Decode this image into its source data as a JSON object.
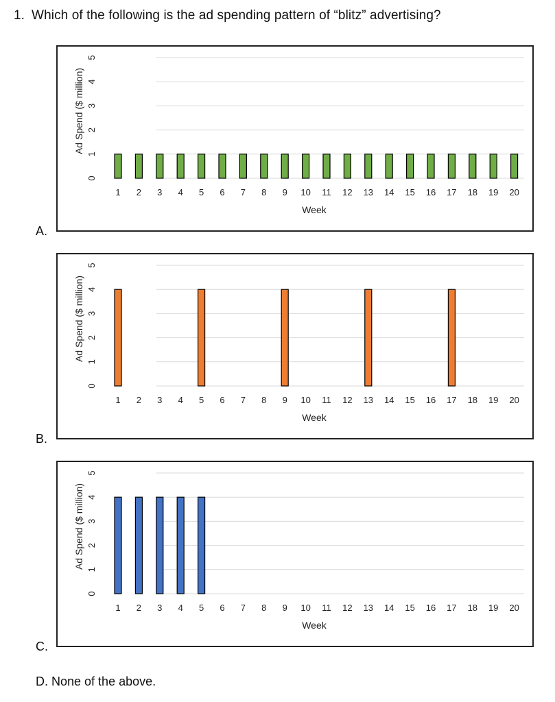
{
  "question": {
    "number": "1.",
    "text": "Which of the following is the ad spending pattern of “blitz” advertising?"
  },
  "options": [
    {
      "letter": "A."
    },
    {
      "letter": "B."
    },
    {
      "letter": "C."
    },
    {
      "letter": "D.",
      "text": "None of the above."
    }
  ],
  "chart_data": [
    {
      "type": "bar",
      "option": "A",
      "xlabel": "Week",
      "ylabel": "Ad Spend ($ million)",
      "ylim": [
        0,
        5
      ],
      "yticks": [
        "0",
        "1",
        "2",
        "3",
        "4",
        "5"
      ],
      "categories": [
        "1",
        "2",
        "3",
        "4",
        "5",
        "6",
        "7",
        "8",
        "9",
        "10",
        "11",
        "12",
        "13",
        "14",
        "15",
        "16",
        "17",
        "18",
        "19",
        "20"
      ],
      "values": [
        1,
        1,
        1,
        1,
        1,
        1,
        1,
        1,
        1,
        1,
        1,
        1,
        1,
        1,
        1,
        1,
        1,
        1,
        1,
        1
      ],
      "color": "#70ad47",
      "grid": true
    },
    {
      "type": "bar",
      "option": "B",
      "xlabel": "Week",
      "ylabel": "Ad Spend ($ million)",
      "ylim": [
        0,
        5
      ],
      "yticks": [
        "0",
        "1",
        "2",
        "3",
        "4",
        "5"
      ],
      "categories": [
        "1",
        "2",
        "3",
        "4",
        "5",
        "6",
        "7",
        "8",
        "9",
        "10",
        "11",
        "12",
        "13",
        "14",
        "15",
        "16",
        "17",
        "18",
        "19",
        "20"
      ],
      "values": [
        4,
        0,
        0,
        0,
        4,
        0,
        0,
        0,
        4,
        0,
        0,
        0,
        4,
        0,
        0,
        0,
        4,
        0,
        0,
        0
      ],
      "color": "#ed7d31",
      "grid": true
    },
    {
      "type": "bar",
      "option": "C",
      "xlabel": "Week",
      "ylabel": "Ad Spend ($ million)",
      "ylim": [
        0,
        5
      ],
      "yticks": [
        "0",
        "1",
        "2",
        "3",
        "4",
        "5"
      ],
      "categories": [
        "1",
        "2",
        "3",
        "4",
        "5",
        "6",
        "7",
        "8",
        "9",
        "10",
        "11",
        "12",
        "13",
        "14",
        "15",
        "16",
        "17",
        "18",
        "19",
        "20"
      ],
      "values": [
        4,
        4,
        4,
        4,
        4,
        0,
        0,
        0,
        0,
        0,
        0,
        0,
        0,
        0,
        0,
        0,
        0,
        0,
        0,
        0
      ],
      "color": "#4472c4",
      "grid": true
    }
  ]
}
